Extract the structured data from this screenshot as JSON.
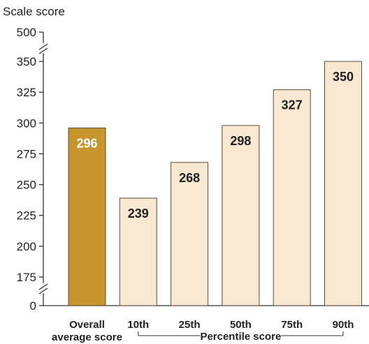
{
  "chart_data": {
    "type": "bar",
    "ylabel": "Scale score",
    "yticks": [
      0,
      175,
      200,
      225,
      250,
      275,
      300,
      325,
      350,
      500
    ],
    "axis_breaks": [
      "between 0 and 175",
      "between 350 and 500"
    ],
    "categories": [
      {
        "label_lines": [
          "Overall",
          "average score"
        ],
        "value": 296,
        "highlight": true
      },
      {
        "label_lines": [
          "10th"
        ],
        "value": 239,
        "highlight": false
      },
      {
        "label_lines": [
          "25th"
        ],
        "value": 268,
        "highlight": false
      },
      {
        "label_lines": [
          "50th"
        ],
        "value": 298,
        "highlight": false
      },
      {
        "label_lines": [
          "75th"
        ],
        "value": 327,
        "highlight": false
      },
      {
        "label_lines": [
          "90th"
        ],
        "value": 350,
        "highlight": false
      }
    ],
    "group_label": "Percentile score",
    "colors": {
      "highlight_bar": "#c8962e",
      "bar": "#f8e8d2",
      "bar_outline": "#5a4a3a",
      "highlight_value_text": "#ffffff",
      "value_text": "#222222",
      "axis": "#333333"
    }
  }
}
